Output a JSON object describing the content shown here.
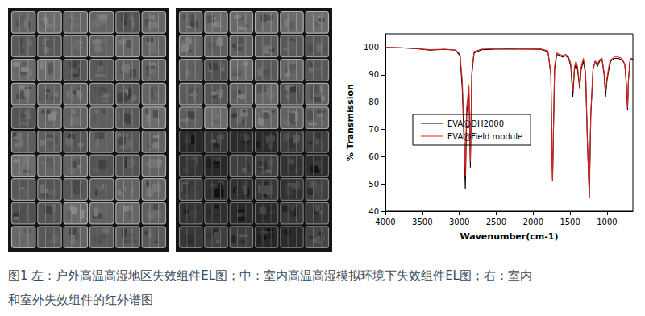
{
  "chart_data": {
    "type": "line",
    "x_label": "Wavenumber(cm-1)",
    "y_label": "% Transmission",
    "x": [
      4000,
      3800,
      3600,
      3400,
      3200,
      3050,
      2990,
      2960,
      2935,
      2918,
      2900,
      2870,
      2850,
      2830,
      2800,
      2700,
      2500,
      2300,
      2100,
      1900,
      1800,
      1760,
      1745,
      1737,
      1725,
      1710,
      1680,
      1640,
      1600,
      1560,
      1520,
      1490,
      1463,
      1440,
      1420,
      1400,
      1370,
      1350,
      1320,
      1290,
      1265,
      1240,
      1220,
      1190,
      1160,
      1130,
      1100,
      1070,
      1040,
      1020,
      1000,
      970,
      950,
      900,
      850,
      800,
      760,
      735,
      722,
      710,
      690,
      670,
      650
    ],
    "series": [
      {
        "name": "EVA@DH2000",
        "color": "#000000",
        "values": [
          100,
          99.9,
          99.6,
          99.0,
          99.3,
          99.0,
          97,
          85,
          65,
          48,
          75,
          85,
          56,
          90,
          98,
          99.2,
          99.4,
          99.5,
          99.4,
          99.3,
          98.5,
          90,
          60,
          51,
          70,
          92,
          97.5,
          97,
          96.5,
          97,
          96,
          93,
          82,
          92,
          94,
          92,
          85,
          92,
          95,
          90,
          65,
          45,
          75,
          92,
          95,
          93,
          95,
          96,
          90,
          82,
          88,
          93,
          95,
          96,
          96,
          95.5,
          94,
          85,
          77,
          88,
          95,
          96,
          95.5
        ]
      },
      {
        "name": "EVA@Field module",
        "color": "#e0201b",
        "values": [
          100,
          99.9,
          99.7,
          99.2,
          99.4,
          99.1,
          97.5,
          88,
          70,
          53,
          78,
          86,
          58,
          91,
          98.5,
          99.4,
          99.6,
          99.6,
          99.5,
          99.5,
          98.8,
          90,
          60,
          51,
          70,
          93,
          98,
          97.5,
          97,
          97.5,
          96.5,
          94,
          84,
          93,
          95,
          93,
          86,
          93,
          96,
          91,
          65,
          45,
          76,
          92,
          95,
          94,
          95.5,
          96,
          91,
          84,
          89,
          94,
          95.5,
          96.5,
          96.5,
          96,
          94,
          86,
          78,
          88,
          95,
          96,
          96
        ]
      }
    ],
    "xlim": [
      4000,
      650
    ],
    "xticks": [
      4000,
      3500,
      3000,
      2500,
      2000,
      1500,
      1000
    ],
    "ylim": [
      40,
      105
    ],
    "yticks": [
      40,
      50,
      60,
      70,
      80,
      90,
      100
    ],
    "grid": false,
    "legend": "center left"
  },
  "caption": [
    "图1 左：户外高温高湿地区失效组件EL图；中：室内高温高湿模拟环境下失效组件EL图；右：室内",
    "和室外失效组件的红外谱图"
  ]
}
